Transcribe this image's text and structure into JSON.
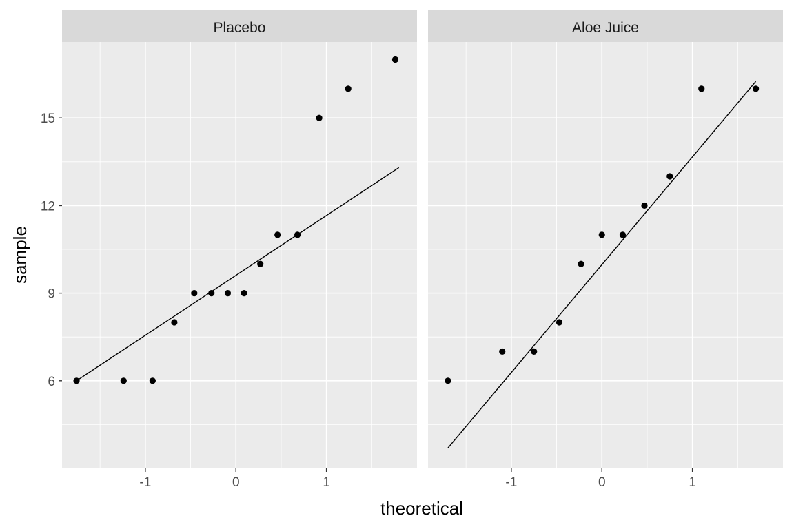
{
  "chart_data": {
    "type": "scatter",
    "subtype": "qq-plot",
    "xlabel": "theoretical",
    "ylabel": "sample",
    "xlim": [
      -1.92,
      2.0
    ],
    "ylim": [
      3.0,
      17.6
    ],
    "x_ticks": [
      -1,
      0,
      1
    ],
    "x_tick_labels": [
      "-1",
      "0",
      "1"
    ],
    "y_ticks": [
      6,
      9,
      12,
      15
    ],
    "y_tick_labels": [
      "6",
      "9",
      "12",
      "15"
    ],
    "grid": true,
    "panels": [
      {
        "strip": "Placebo",
        "points": [
          {
            "x": -1.76,
            "y": 6
          },
          {
            "x": -1.24,
            "y": 6
          },
          {
            "x": -0.92,
            "y": 6
          },
          {
            "x": -0.68,
            "y": 8
          },
          {
            "x": -0.46,
            "y": 9
          },
          {
            "x": -0.27,
            "y": 9
          },
          {
            "x": -0.09,
            "y": 9
          },
          {
            "x": 0.09,
            "y": 9
          },
          {
            "x": 0.27,
            "y": 10
          },
          {
            "x": 0.46,
            "y": 11
          },
          {
            "x": 0.68,
            "y": 11
          },
          {
            "x": 0.92,
            "y": 15
          },
          {
            "x": 1.24,
            "y": 16
          },
          {
            "x": 1.76,
            "y": 17
          }
        ],
        "qq_line": [
          [
            -1.76,
            6.0
          ],
          [
            1.8,
            13.3
          ]
        ]
      },
      {
        "strip": "Aloe Juice",
        "points": [
          {
            "x": -1.7,
            "y": 6
          },
          {
            "x": -1.1,
            "y": 7
          },
          {
            "x": -0.75,
            "y": 7
          },
          {
            "x": -0.47,
            "y": 8
          },
          {
            "x": -0.23,
            "y": 10
          },
          {
            "x": 0.0,
            "y": 11
          },
          {
            "x": 0.23,
            "y": 11
          },
          {
            "x": 0.47,
            "y": 12
          },
          {
            "x": 0.75,
            "y": 13
          },
          {
            "x": 1.1,
            "y": 16
          },
          {
            "x": 1.7,
            "y": 16
          }
        ],
        "qq_line": [
          [
            -1.7,
            3.7
          ],
          [
            1.7,
            16.25
          ]
        ]
      }
    ]
  }
}
